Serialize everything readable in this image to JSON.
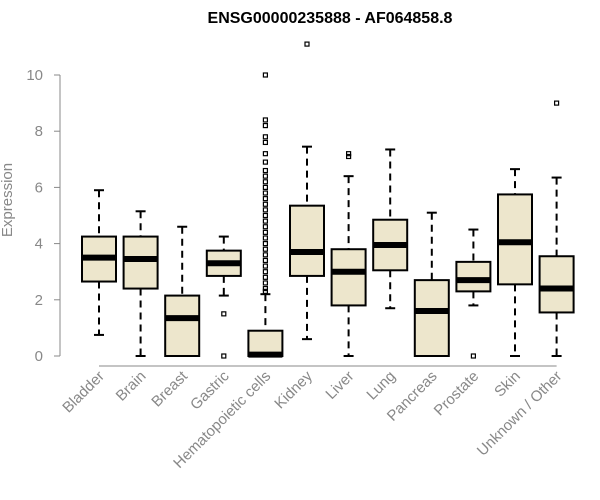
{
  "chart_data": {
    "type": "boxplot",
    "title": "ENSG00000235888 - AF064858.8",
    "xlabel": "",
    "ylabel": "Expression",
    "ylim": [
      0,
      11.2
    ],
    "yticks": [
      0,
      2,
      4,
      6,
      8,
      10
    ],
    "grid": false,
    "legend": "none",
    "colors": {
      "box_fill": "#ede6cc",
      "box_stroke": "#000000",
      "median": "#000000",
      "axis": "#888888"
    },
    "categories": [
      "Bladder",
      "Brain",
      "Breast",
      "Gastric",
      "Hematopoietic cells",
      "Kidney",
      "Liver",
      "Lung",
      "Pancreas",
      "Prostate",
      "Skin",
      "Unknown / Other"
    ],
    "boxes": [
      {
        "name": "Bladder",
        "whisker_low": 0.75,
        "q1": 2.65,
        "median": 3.5,
        "q3": 4.25,
        "whisker_high": 5.9,
        "outliers": []
      },
      {
        "name": "Brain",
        "whisker_low": 0.0,
        "q1": 2.4,
        "median": 3.45,
        "q3": 4.25,
        "whisker_high": 5.15,
        "outliers": []
      },
      {
        "name": "Breast",
        "whisker_low": 0.0,
        "q1": 0.0,
        "median": 1.35,
        "q3": 2.15,
        "whisker_high": 4.6,
        "outliers": []
      },
      {
        "name": "Gastric",
        "whisker_low": 2.15,
        "q1": 2.85,
        "median": 3.3,
        "q3": 3.75,
        "whisker_high": 4.25,
        "outliers": [
          0.0,
          1.5
        ]
      },
      {
        "name": "Hematopoietic cells",
        "whisker_low": 0.0,
        "q1": 0.0,
        "median": 0.05,
        "q3": 0.9,
        "whisker_high": 2.2,
        "outliers": [
          10.0,
          8.4,
          8.2,
          7.8,
          7.6,
          7.2,
          6.9,
          6.6,
          6.4,
          6.2,
          6.0,
          5.8,
          5.6,
          5.4,
          5.2,
          5.0,
          4.8,
          4.6,
          4.4,
          4.2,
          4.0,
          3.8,
          3.6,
          3.4,
          3.2,
          3.0,
          2.8,
          2.6,
          2.4,
          2.3
        ]
      },
      {
        "name": "Kidney",
        "whisker_low": 0.6,
        "q1": 2.85,
        "median": 3.7,
        "q3": 5.35,
        "whisker_high": 7.45,
        "outliers": [
          11.1
        ]
      },
      {
        "name": "Liver",
        "whisker_low": 0.0,
        "q1": 1.8,
        "median": 3.0,
        "q3": 3.8,
        "whisker_high": 6.4,
        "outliers": [
          7.2,
          7.1
        ]
      },
      {
        "name": "Lung",
        "whisker_low": 1.7,
        "q1": 3.05,
        "median": 3.95,
        "q3": 4.85,
        "whisker_high": 7.35,
        "outliers": []
      },
      {
        "name": "Pancreas",
        "whisker_low": 0.0,
        "q1": 0.0,
        "median": 1.6,
        "q3": 2.7,
        "whisker_high": 5.1,
        "outliers": []
      },
      {
        "name": "Prostate",
        "whisker_low": 1.8,
        "q1": 2.3,
        "median": 2.7,
        "q3": 3.35,
        "whisker_high": 4.5,
        "outliers": [
          0.0
        ]
      },
      {
        "name": "Skin",
        "whisker_low": 0.0,
        "q1": 2.55,
        "median": 4.05,
        "q3": 5.75,
        "whisker_high": 6.65,
        "outliers": []
      },
      {
        "name": "Unknown / Other",
        "whisker_low": 0.0,
        "q1": 1.55,
        "median": 2.4,
        "q3": 3.55,
        "whisker_high": 6.35,
        "outliers": [
          9.0
        ]
      }
    ]
  }
}
